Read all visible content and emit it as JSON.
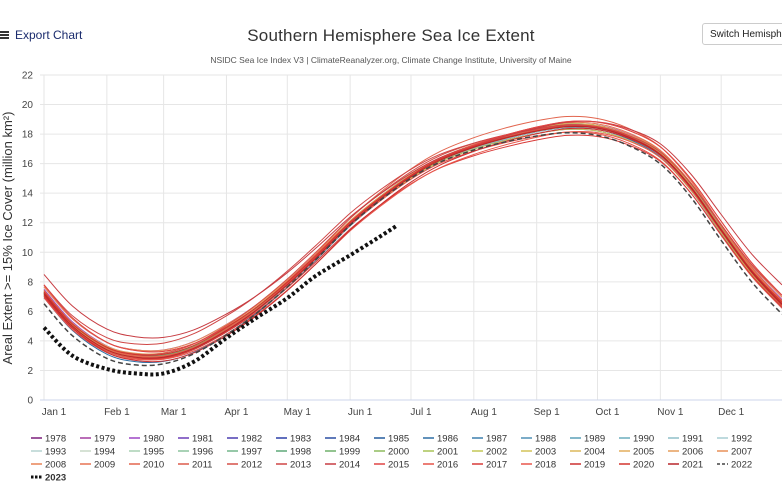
{
  "toolbar": {
    "export_label": "Export Chart",
    "switch_label": "Switch Hemisphere"
  },
  "chart_data": {
    "type": "line",
    "title": "Southern Hemisphere Sea Ice Extent",
    "subtitle": "NSIDC Sea Ice Index V3 | ClimateReanalyzer.org, Climate Change Institute, University of Maine",
    "ylabel": "Areal Extent >= 15% Ice Cover (million km²)",
    "xlabel": "",
    "ylim": [
      0,
      22
    ],
    "yticks": [
      0,
      2,
      4,
      6,
      8,
      10,
      12,
      14,
      16,
      18,
      20,
      22
    ],
    "xlim": [
      1,
      365
    ],
    "xticks": [
      {
        "day": 1,
        "label": "Jan 1"
      },
      {
        "day": 32,
        "label": "Feb 1"
      },
      {
        "day": 60,
        "label": "Mar 1"
      },
      {
        "day": 91,
        "label": "Apr 1"
      },
      {
        "day": 121,
        "label": "May 1"
      },
      {
        "day": 152,
        "label": "Jun 1"
      },
      {
        "day": 182,
        "label": "Jul 1"
      },
      {
        "day": 213,
        "label": "Aug 1"
      },
      {
        "day": 244,
        "label": "Sep 1"
      },
      {
        "day": 274,
        "label": "Oct 1"
      },
      {
        "day": 305,
        "label": "Nov 1"
      },
      {
        "day": 335,
        "label": "Dec 1"
      }
    ],
    "grid": true,
    "legend_position": "bottom",
    "climatology": {
      "days": [
        1,
        15,
        32,
        46,
        60,
        75,
        91,
        105,
        121,
        135,
        152,
        166,
        182,
        196,
        213,
        228,
        244,
        259,
        274,
        289,
        305,
        320,
        335,
        350,
        365
      ],
      "values": [
        7.2,
        5.0,
        3.4,
        2.9,
        2.9,
        3.5,
        4.7,
        6.0,
        7.8,
        9.6,
        11.9,
        13.5,
        15.1,
        16.2,
        17.1,
        17.7,
        18.2,
        18.5,
        18.4,
        17.8,
        16.6,
        14.4,
        11.5,
        8.7,
        6.5
      ]
    },
    "series": [
      {
        "name": "1978",
        "color": "#7b1e7a",
        "offset": 0.0
      },
      {
        "name": "1979",
        "color": "#a23da0",
        "offset": 0.5
      },
      {
        "name": "1980",
        "color": "#9c45c4",
        "offset": 0.3
      },
      {
        "name": "1981",
        "color": "#6a3db8",
        "offset": -0.2
      },
      {
        "name": "1982",
        "color": "#4b3cb0",
        "offset": 0.2
      },
      {
        "name": "1983",
        "color": "#2c3fa8",
        "offset": 0.0
      },
      {
        "name": "1984",
        "color": "#2a4ea2",
        "offset": -0.1
      },
      {
        "name": "1985",
        "color": "#235a9e",
        "offset": 0.1
      },
      {
        "name": "1986",
        "color": "#2d6ea4",
        "offset": -0.3
      },
      {
        "name": "1987",
        "color": "#3c7fae",
        "offset": 0.2
      },
      {
        "name": "1988",
        "color": "#4f90b6",
        "offset": 0.0
      },
      {
        "name": "1989",
        "color": "#5aa0b8",
        "offset": 0.1
      },
      {
        "name": "1990",
        "color": "#6aaebd",
        "offset": 0.0
      },
      {
        "name": "1991",
        "color": "#8fbfc9",
        "offset": -0.1
      },
      {
        "name": "1992",
        "color": "#a9cdd3",
        "offset": 0.3
      },
      {
        "name": "1993",
        "color": "#b5d3d0",
        "offset": -0.1
      },
      {
        "name": "1994",
        "color": "#c9d9c7",
        "offset": 0.1
      },
      {
        "name": "1995",
        "color": "#a8d0b2",
        "offset": 0.0
      },
      {
        "name": "1996",
        "color": "#8cc39e",
        "offset": 0.1
      },
      {
        "name": "1997",
        "color": "#72b68a",
        "offset": 0.0
      },
      {
        "name": "1998",
        "color": "#5ea878",
        "offset": 0.2
      },
      {
        "name": "1999",
        "color": "#6fb16a",
        "offset": 0.1
      },
      {
        "name": "2000",
        "color": "#8dbb5e",
        "offset": 0.2
      },
      {
        "name": "2001",
        "color": "#a9c257",
        "offset": 0.1
      },
      {
        "name": "2002",
        "color": "#c3c756",
        "offset": -0.2
      },
      {
        "name": "2003",
        "color": "#d2c358",
        "offset": 0.2
      },
      {
        "name": "2004",
        "color": "#dcb95a",
        "offset": 0.1
      },
      {
        "name": "2005",
        "color": "#e2ad5c",
        "offset": 0.0
      },
      {
        "name": "2006",
        "color": "#e69e5b",
        "offset": 0.3
      },
      {
        "name": "2007",
        "color": "#e99159",
        "offset": 0.5
      },
      {
        "name": "2008",
        "color": "#e98256",
        "offset": 0.6
      },
      {
        "name": "2009",
        "color": "#e77352",
        "offset": 0.3
      },
      {
        "name": "2010",
        "color": "#e2654e",
        "offset": 0.7
      },
      {
        "name": "2011",
        "color": "#dc5a4b",
        "offset": 0.1
      },
      {
        "name": "2012",
        "color": "#d55048",
        "offset": 0.4
      },
      {
        "name": "2013",
        "color": "#cf4545",
        "offset": 1.0
      },
      {
        "name": "2014",
        "color": "#c73c42",
        "offset": 1.4
      },
      {
        "name": "2015",
        "color": "#e04444",
        "offset": 0.6
      },
      {
        "name": "2016",
        "color": "#e65248",
        "offset": -0.4
      },
      {
        "name": "2017",
        "color": "#d93a38",
        "offset": -0.6
      },
      {
        "name": "2018",
        "color": "#e8564a",
        "offset": -0.5
      },
      {
        "name": "2019",
        "color": "#cc3030",
        "offset": -0.4
      },
      {
        "name": "2020",
        "color": "#d2342e",
        "offset": 0.2
      },
      {
        "name": "2021",
        "color": "#b8262a",
        "offset": 0.0
      },
      {
        "name": "2022",
        "color": "#444444",
        "offset": -0.7,
        "dashed": true
      },
      {
        "name": "2023",
        "color": "#111111",
        "bold_dotted": true,
        "x": [
          1,
          15,
          32,
          46,
          60,
          75,
          91,
          105,
          121,
          135,
          152,
          166,
          175
        ],
        "values": [
          4.9,
          3.0,
          2.1,
          1.8,
          1.8,
          2.6,
          4.2,
          5.5,
          6.9,
          8.4,
          9.8,
          11.0,
          11.8
        ]
      }
    ]
  }
}
